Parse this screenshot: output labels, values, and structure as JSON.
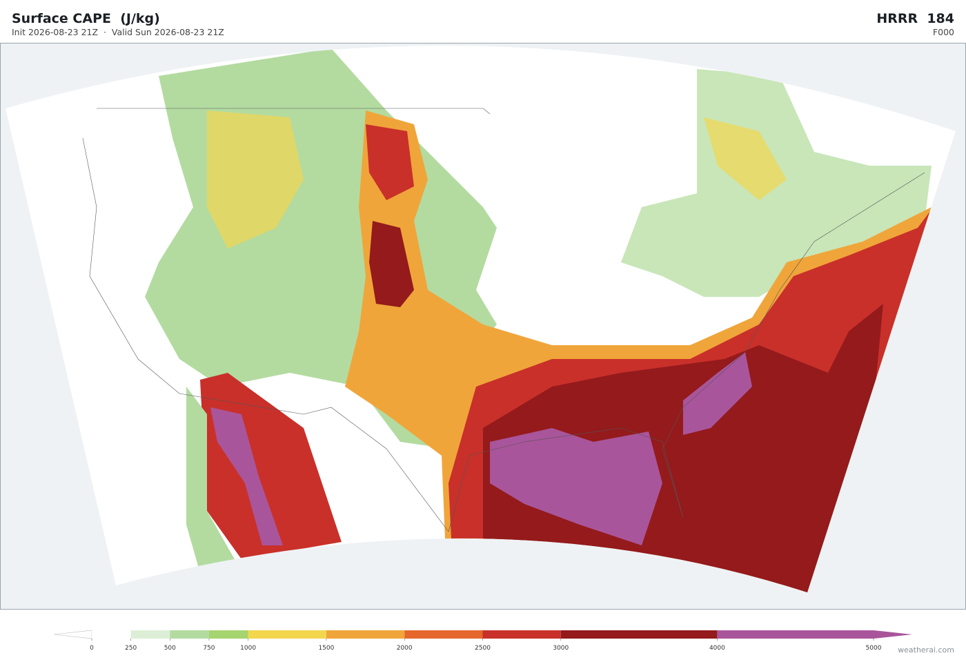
{
  "header": {
    "title": "Surface CAPE  (J/kg)",
    "subtitle": "Init 2026-08-23 21Z  ·  Valid Sun 2026-08-23 21Z",
    "model": "HRRR  184",
    "forecast": "F000"
  },
  "colorbar": {
    "ticks": [
      0,
      250,
      500,
      750,
      1000,
      1500,
      2000,
      2500,
      3000,
      4000,
      5000
    ],
    "colors": [
      "#ffffff",
      "#dcefd6",
      "#b3dba0",
      "#a6d46e",
      "#f2d64e",
      "#f0a53a",
      "#e5672c",
      "#c9302a",
      "#941a1c",
      "#a9559b"
    ]
  },
  "credit": "weatherai.com"
}
